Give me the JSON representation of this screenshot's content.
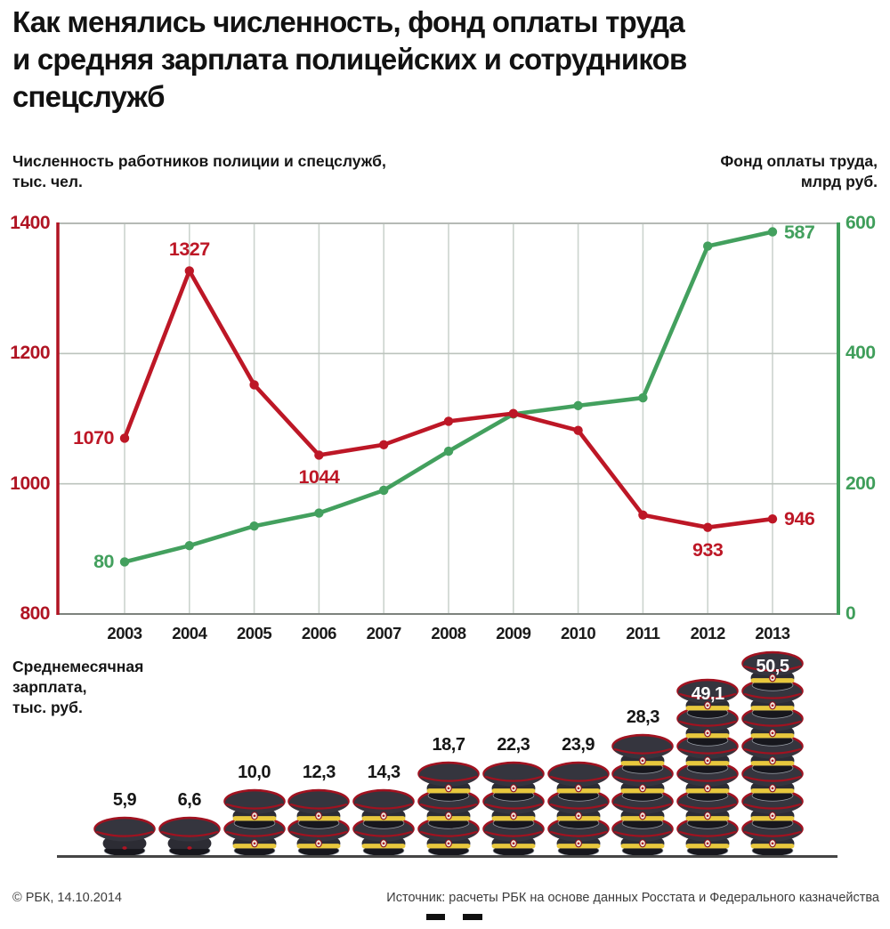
{
  "title": "Как менялись численность, фонд оплаты труда\nи средняя зарплата полицейских и сотрудников\nспецслужб",
  "colors": {
    "red": "#bd1726",
    "red_axis": "#b01423",
    "green": "#43a05e",
    "grid_vertical": "#ccd4ce",
    "grid_horizontal": "#bcc3bd",
    "top_border": "#b5bab5",
    "bottom_border": "#7d827d",
    "text_black": "#141414"
  },
  "chart_data": [
    {
      "type": "line",
      "x": [
        2003,
        2004,
        2005,
        2006,
        2007,
        2008,
        2009,
        2010,
        2011,
        2012,
        2013
      ],
      "left_axis": {
        "title": "Численность работников полиции и спецслужб,\nтыс. чел.",
        "ticks": [
          1400,
          1200,
          1000,
          800
        ],
        "min": 800,
        "max": 1400,
        "color": "#b01423"
      },
      "right_axis": {
        "title": "Фонд оплаты труда,\nмлрд руб.",
        "ticks": [
          600,
          400,
          200,
          0
        ],
        "min": 0,
        "max": 600,
        "color": "#3f9e5a"
      },
      "grid": true,
      "legend_position": "none",
      "series": [
        {
          "name": "Численность работников полиции и спецслужб, тыс. чел.",
          "axis": "left",
          "color": "#bd1726",
          "values": [
            1070,
            1327,
            1152,
            1044,
            1060,
            1096,
            1108,
            1082,
            952,
            933,
            946
          ],
          "point_labels": [
            {
              "year": 2003,
              "text": "1070",
              "pos": "left"
            },
            {
              "year": 2004,
              "text": "1327",
              "pos": "above"
            },
            {
              "year": 2006,
              "text": "1044",
              "pos": "below"
            },
            {
              "year": 2012,
              "text": "933",
              "pos": "below"
            },
            {
              "year": 2013,
              "text": "946",
              "pos": "right"
            }
          ]
        },
        {
          "name": "Фонд оплаты труда, млрд руб.",
          "axis": "right",
          "color": "#43a05e",
          "values": [
            80,
            105,
            135,
            155,
            190,
            250,
            307,
            320,
            332,
            565,
            587
          ],
          "point_labels": [
            {
              "year": 2003,
              "text": "80",
              "pos": "left"
            },
            {
              "year": 2013,
              "text": "587",
              "pos": "right"
            }
          ]
        }
      ]
    },
    {
      "type": "bar",
      "title": "Среднемесячная\nзарплата,\nтыс. руб.",
      "icon": "police-cap",
      "categories": [
        2003,
        2004,
        2005,
        2006,
        2007,
        2008,
        2009,
        2010,
        2011,
        2012,
        2013
      ],
      "values": [
        5.9,
        6.6,
        10.0,
        12.3,
        14.3,
        18.7,
        22.3,
        23.9,
        28.3,
        49.1,
        50.5
      ],
      "labels": [
        "5,9",
        "6,6",
        "10,0",
        "12,3",
        "14,3",
        "18,7",
        "22,3",
        "23,9",
        "28,3",
        "49,1",
        "50,5"
      ],
      "cap_counts": [
        1,
        1,
        2,
        2,
        2,
        3,
        3,
        3,
        4,
        6,
        7
      ],
      "plain_cap": [
        true,
        true,
        false,
        false,
        false,
        false,
        false,
        false,
        false,
        false,
        false
      ],
      "label_style": [
        "black",
        "black",
        "black",
        "black",
        "black",
        "black",
        "black",
        "black",
        "black",
        "white",
        "white"
      ]
    }
  ],
  "footer": {
    "copyright": "© РБК, 14.10.2014",
    "source": "Источник: расчеты РБК на основе данных Росстата и Федерального казначейства"
  }
}
